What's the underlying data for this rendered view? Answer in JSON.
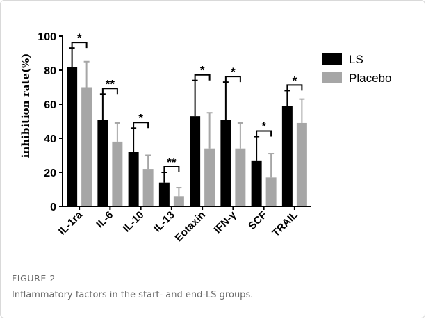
{
  "chart_data": {
    "type": "bar",
    "ylabel": "inhibition rate(%)",
    "ylim": [
      0,
      100
    ],
    "yticks": [
      0,
      20,
      40,
      60,
      80,
      100
    ],
    "categories": [
      "IL-1ra",
      "IL-6",
      "IL-10",
      "IL-13",
      "Eotaxin",
      "IFN-γ",
      "SCF",
      "TRAIL"
    ],
    "series": [
      {
        "name": "LS",
        "color": "#000000",
        "values": [
          82,
          51,
          32,
          14,
          53,
          51,
          27,
          59
        ],
        "error": [
          11,
          15,
          14,
          6,
          21,
          22,
          14,
          9
        ]
      },
      {
        "name": "Placebo",
        "color": "#a6a6a6",
        "values": [
          70,
          38,
          22,
          6,
          34,
          34,
          17,
          49
        ],
        "error": [
          15,
          11,
          8,
          5,
          21,
          15,
          14,
          14
        ]
      }
    ],
    "significance": [
      "*",
      "**",
      "*",
      "**",
      "*",
      "*",
      "*",
      "*"
    ],
    "legend_position": "top-right"
  },
  "caption": {
    "label": "FIGURE 2",
    "text": "Inflammatory factors in the start- and end-LS groups."
  }
}
